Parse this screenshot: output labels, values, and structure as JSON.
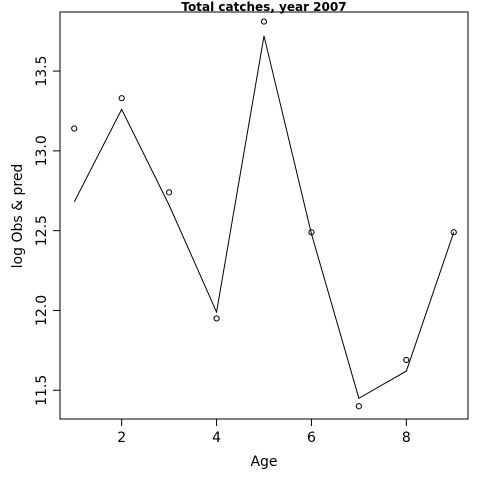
{
  "chart_data": {
    "type": "scatter",
    "title": "Total catches, year 2007",
    "xlabel": "Age",
    "ylabel": "log Obs & pred",
    "xlim": [
      0.7,
      9.3
    ],
    "ylim": [
      11.32,
      13.87
    ],
    "x_ticks": [
      2,
      4,
      6,
      8
    ],
    "y_ticks": [
      11.5,
      12.0,
      12.5,
      13.0,
      13.5
    ],
    "x_tick_labels": [
      "2",
      "4",
      "6",
      "8"
    ],
    "y_tick_labels": [
      "11.5",
      "12.0",
      "12.5",
      "13.0",
      "13.5"
    ],
    "grid": false,
    "legend": "none",
    "series": [
      {
        "kind": "points",
        "x": [
          1,
          2,
          3,
          4,
          5,
          6,
          7,
          8,
          9
        ],
        "y": [
          13.14,
          13.33,
          12.74,
          11.95,
          13.81,
          12.49,
          11.4,
          11.69,
          12.49
        ]
      },
      {
        "kind": "line",
        "x": [
          1,
          2,
          3,
          4,
          5,
          6,
          7,
          8,
          9
        ],
        "y": [
          12.68,
          13.26,
          12.66,
          11.99,
          13.72,
          12.48,
          11.45,
          11.62,
          12.49
        ]
      }
    ]
  }
}
